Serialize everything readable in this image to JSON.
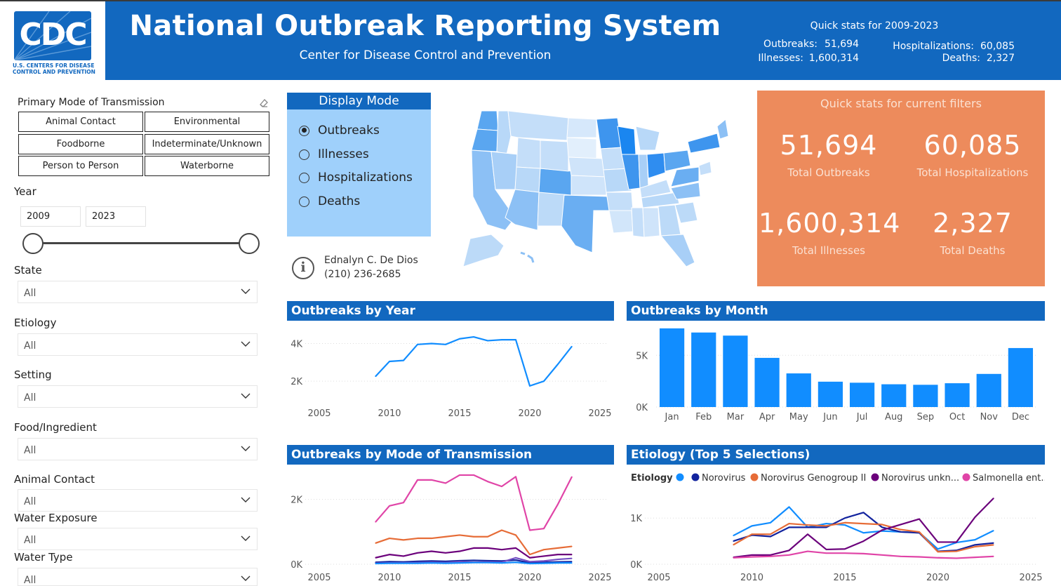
{
  "header": {
    "logo_text": "CDC",
    "logo_sub_line1": "U.S. CENTERS FOR DISEASE",
    "logo_sub_line2": "CONTROL AND PREVENTION",
    "title": "National Outbreak Reporting System",
    "subtitle": "Center for Disease Control and Prevention",
    "quick_stats_title": "Quick stats for 2009-2023",
    "outbreaks_label": "Outbreaks:",
    "outbreaks_value": "51,694",
    "illnesses_label": "Illnesses:",
    "illnesses_value": "1,600,314",
    "hosp_label": "Hospitalizations:",
    "hosp_value": "60,085",
    "deaths_label": "Deaths:",
    "deaths_value": "2,327"
  },
  "filters": {
    "mode_title": "Primary Mode of Transmission",
    "mode_tiles": [
      "Animal Contact",
      "Environmental",
      "Foodborne",
      "Indeterminate/Unknown",
      "Person to Person",
      "Waterborne"
    ],
    "year_title": "Year",
    "year_from": "2009",
    "year_to": "2023",
    "dropdowns": [
      {
        "title": "State",
        "value": "All"
      },
      {
        "title": "Etiology",
        "value": "All"
      },
      {
        "title": "Setting",
        "value": "All"
      },
      {
        "title": "Food/Ingredient",
        "value": "All"
      },
      {
        "title": "Animal Contact",
        "value": "All"
      },
      {
        "title": "Water Exposure",
        "value": "All"
      },
      {
        "title": "Water Type",
        "value": "All"
      }
    ]
  },
  "display_mode": {
    "title": "Display Mode",
    "options": [
      "Outbreaks",
      "Illnesses",
      "Hospitalizations",
      "Deaths"
    ],
    "selected": "Outbreaks"
  },
  "info": {
    "name": "Ednalyn C. De Dios",
    "phone": "(210) 236-2685"
  },
  "kpis": {
    "title": "Quick stats for current filters",
    "items": [
      {
        "value": "51,694",
        "label": "Total Outbreaks"
      },
      {
        "value": "60,085",
        "label": "Total Hospitalizations"
      },
      {
        "value": "1,600,314",
        "label": "Total Illnesses"
      },
      {
        "value": "2,327",
        "label": "Total Deaths"
      }
    ]
  },
  "colors": {
    "brand_blue": "#1268bf",
    "kpi_orange": "#ed8b5c",
    "panel_blue": "#9fd0fb",
    "bar_blue": "#118dff"
  },
  "chart_data": [
    {
      "id": "by_year",
      "type": "line",
      "title": "Outbreaks by Year",
      "x": [
        2009,
        2010,
        2011,
        2012,
        2013,
        2014,
        2015,
        2016,
        2017,
        2018,
        2019,
        2020,
        2021,
        2022,
        2023
      ],
      "series": [
        {
          "values": [
            2250,
            3050,
            3100,
            3950,
            4000,
            3950,
            4250,
            4350,
            4150,
            4200,
            4200,
            1750,
            2000,
            2900,
            3850
          ],
          "color": "#118dff"
        }
      ],
      "xlim": [
        2005,
        2025
      ],
      "ylim": [
        1000,
        4800
      ],
      "xticks": [
        "2005",
        "2010",
        "2015",
        "2020",
        "2025"
      ],
      "yticks": [
        "2K",
        "4K"
      ],
      "ytick_values": [
        2000,
        4000
      ]
    },
    {
      "id": "by_month",
      "type": "bar",
      "title": "Outbreaks by Month",
      "categories": [
        "Jan",
        "Feb",
        "Mar",
        "Apr",
        "May",
        "Jun",
        "Jul",
        "Aug",
        "Sep",
        "Oct",
        "Nov",
        "Dec"
      ],
      "values": [
        7600,
        7200,
        6900,
        4750,
        3250,
        2450,
        2350,
        2200,
        2150,
        2300,
        3200,
        5700
      ],
      "ylim": [
        0,
        8000
      ],
      "yticks": [
        "0K",
        "5K"
      ],
      "ytick_values": [
        0,
        5000
      ]
    },
    {
      "id": "by_mode",
      "type": "line",
      "title": "Outbreaks by Mode of Transmission",
      "x": [
        2009,
        2010,
        2011,
        2012,
        2013,
        2014,
        2015,
        2016,
        2017,
        2018,
        2019,
        2020,
        2021,
        2022,
        2023
      ],
      "series": [
        {
          "values": [
            1300,
            1800,
            1900,
            2600,
            2600,
            2500,
            2750,
            2750,
            2550,
            2400,
            2700,
            1050,
            1100,
            1850,
            2700
          ],
          "color": "#e044a7"
        },
        {
          "values": [
            650,
            800,
            750,
            800,
            800,
            850,
            900,
            850,
            850,
            1050,
            900,
            300,
            450,
            500,
            550
          ],
          "color": "#e66c37"
        },
        {
          "values": [
            200,
            300,
            250,
            350,
            400,
            350,
            400,
            500,
            500,
            450,
            500,
            200,
            250,
            300,
            300
          ],
          "color": "#6b007b"
        },
        {
          "values": [
            60,
            80,
            70,
            90,
            100,
            90,
            110,
            120,
            110,
            100,
            130,
            40,
            60,
            70,
            80
          ],
          "color": "#12239e"
        },
        {
          "values": [
            30,
            40,
            40,
            50,
            60,
            50,
            80,
            60,
            70,
            60,
            200,
            80,
            100,
            150,
            180
          ],
          "color": "#744ec2"
        },
        {
          "values": [
            20,
            30,
            30,
            30,
            40,
            30,
            40,
            50,
            50,
            40,
            60,
            20,
            30,
            40,
            40
          ],
          "color": "#118dff"
        }
      ],
      "xlim": [
        2005,
        2025
      ],
      "ylim": [
        0,
        2900
      ],
      "xticks": [
        "2005",
        "2010",
        "2015",
        "2020",
        "2025"
      ],
      "yticks": [
        "0K",
        "2K"
      ],
      "ytick_values": [
        0,
        2000
      ]
    },
    {
      "id": "etiology",
      "type": "line",
      "title": "Etiology (Top 5 Selections)",
      "legend_title": "Etiology",
      "legend": [
        "",
        "Norovirus",
        "Norovirus Genogroup II",
        "Norovirus unkn...",
        "Salmonella ent..."
      ],
      "x": [
        2009,
        2010,
        2011,
        2012,
        2013,
        2014,
        2015,
        2016,
        2017,
        2018,
        2019,
        2020,
        2021,
        2022,
        2023
      ],
      "series": [
        {
          "name": "",
          "values": [
            620,
            830,
            900,
            1240,
            800,
            880,
            850,
            680,
            720,
            700,
            690,
            330,
            470,
            530,
            730
          ],
          "color": "#118dff"
        },
        {
          "name": "Norovirus",
          "values": [
            500,
            630,
            600,
            800,
            800,
            800,
            1000,
            1120,
            800,
            700,
            680,
            280,
            300,
            420,
            460
          ],
          "color": "#12239e"
        },
        {
          "name": "Norovirus Genogroup II",
          "values": [
            420,
            650,
            650,
            880,
            850,
            830,
            900,
            880,
            860,
            750,
            700,
            270,
            280,
            380,
            420
          ],
          "color": "#e66c37"
        },
        {
          "name": "Norovirus unkn...",
          "values": [
            150,
            200,
            200,
            300,
            650,
            320,
            330,
            500,
            740,
            860,
            980,
            480,
            480,
            1020,
            1430
          ],
          "color": "#6b007b"
        },
        {
          "name": "Salmonella ent...",
          "values": [
            140,
            160,
            170,
            200,
            280,
            240,
            240,
            230,
            200,
            170,
            160,
            140,
            130,
            150,
            170
          ],
          "color": "#e044a7"
        }
      ],
      "xlim": [
        2005,
        2025
      ],
      "ylim": [
        0,
        1550
      ],
      "xticks": [
        "2005",
        "2010",
        "2015",
        "2020",
        "2025"
      ],
      "yticks": [
        "0K",
        "1K"
      ],
      "ytick_values": [
        0,
        1000
      ]
    }
  ]
}
